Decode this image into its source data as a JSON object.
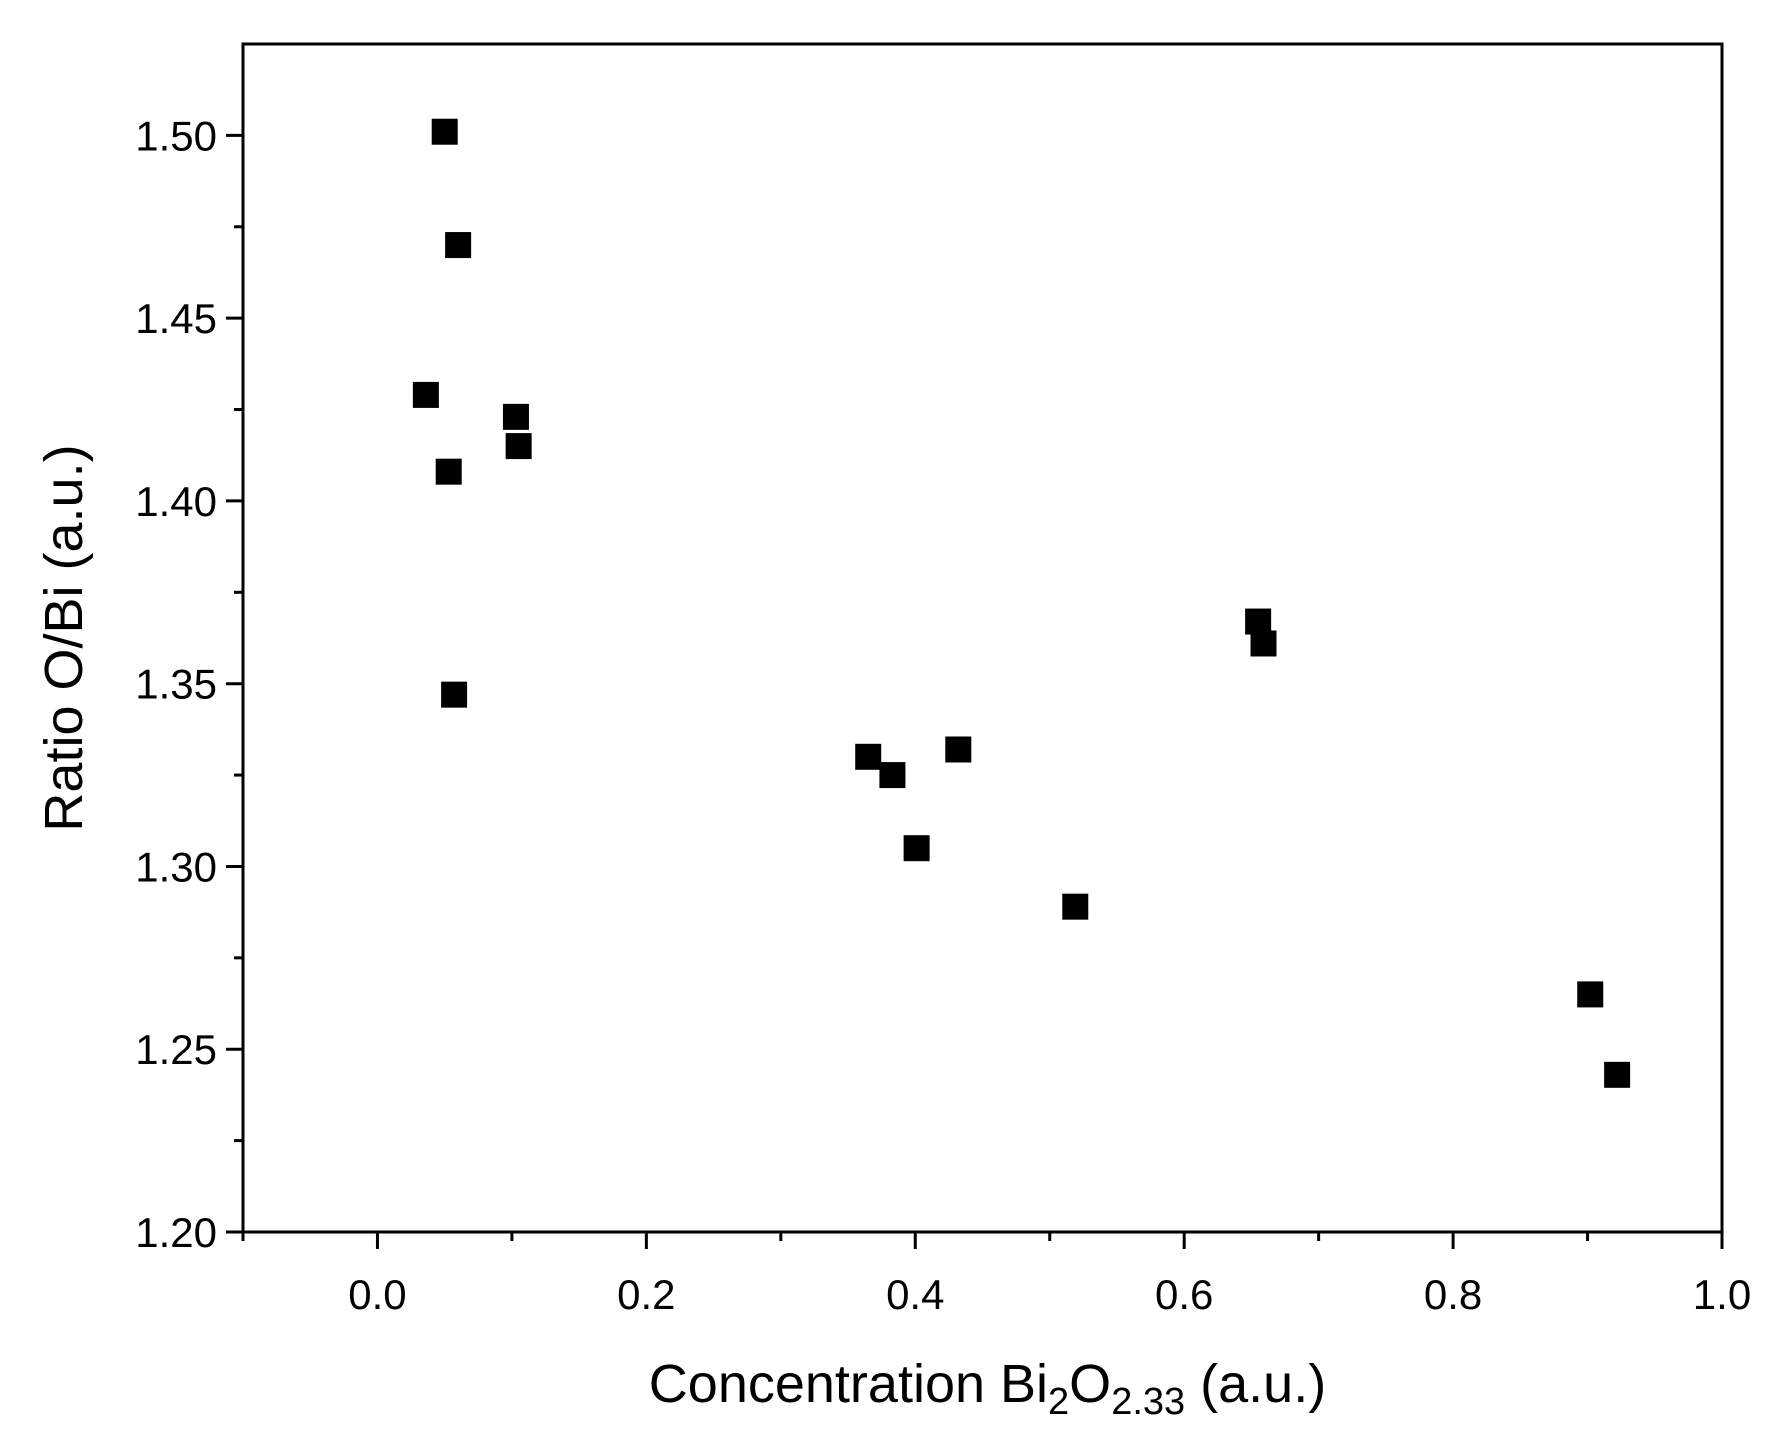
{
  "chart_data": {
    "type": "scatter",
    "title": "",
    "xlabel": {
      "parts": [
        {
          "text": "Concentration  Bi",
          "sub": false
        },
        {
          "text": "2",
          "sub": true
        },
        {
          "text": "O",
          "sub": false
        },
        {
          "text": "2.33",
          "sub": true
        },
        {
          "text": " (a.u.)",
          "sub": false
        }
      ]
    },
    "ylabel": "Ratio O/Bi (a.u.)",
    "xlim": [
      -0.1,
      1.0
    ],
    "ylim": [
      1.2,
      1.525
    ],
    "x_ticks": [
      0.0,
      0.2,
      0.4,
      0.6,
      0.8,
      1.0
    ],
    "x_tick_labels": [
      "0.0",
      "0.2",
      "0.4",
      "0.6",
      "0.8",
      "1.0"
    ],
    "x_minor_ticks": [
      -0.1,
      0.1,
      0.3,
      0.5,
      0.7,
      0.9
    ],
    "y_ticks": [
      1.2,
      1.25,
      1.3,
      1.35,
      1.4,
      1.45,
      1.5
    ],
    "y_tick_labels": [
      "1.20",
      "1.25",
      "1.30",
      "1.35",
      "1.40",
      "1.45",
      "1.50"
    ],
    "y_minor_ticks": [
      1.225,
      1.275,
      1.325,
      1.375,
      1.425,
      1.475
    ],
    "grid": false,
    "marker": "square",
    "color": "#000000",
    "points": [
      {
        "x": 0.05,
        "y": 1.501
      },
      {
        "x": 0.06,
        "y": 1.47
      },
      {
        "x": 0.036,
        "y": 1.429
      },
      {
        "x": 0.103,
        "y": 1.423
      },
      {
        "x": 0.105,
        "y": 1.415
      },
      {
        "x": 0.053,
        "y": 1.408
      },
      {
        "x": 0.057,
        "y": 1.347
      },
      {
        "x": 0.365,
        "y": 1.33
      },
      {
        "x": 0.383,
        "y": 1.325
      },
      {
        "x": 0.432,
        "y": 1.332
      },
      {
        "x": 0.401,
        "y": 1.305
      },
      {
        "x": 0.519,
        "y": 1.289
      },
      {
        "x": 0.655,
        "y": 1.367
      },
      {
        "x": 0.659,
        "y": 1.361
      },
      {
        "x": 0.902,
        "y": 1.265
      },
      {
        "x": 0.922,
        "y": 1.243
      }
    ]
  }
}
